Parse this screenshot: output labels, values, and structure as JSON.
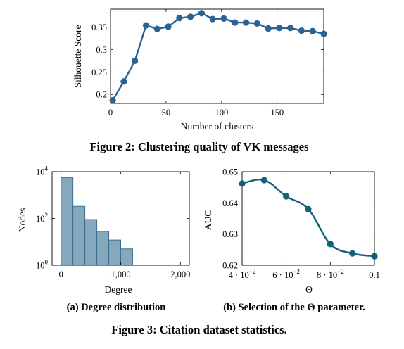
{
  "figure2": {
    "caption": "Figure 2: Clustering quality of VK messages"
  },
  "figure3": {
    "caption": "Figure 3: Citation dataset statistics.",
    "subcaption_a": "(a) Degree distribution",
    "subcaption_b": "(b) Selection of the Θ parameter."
  },
  "colors": {
    "line": "#2a6293",
    "line_b": "#13607a",
    "bar_fill": "#86a8bd",
    "bar_stroke": "#3d6f93"
  },
  "chart_data": [
    {
      "id": "silhouette",
      "type": "line",
      "title": "",
      "xlabel": "Number of clusters",
      "ylabel": "Silhouette Score",
      "xlim": [
        0,
        192
      ],
      "ylim": [
        0.18,
        0.39
      ],
      "xticks": [
        0,
        50,
        100,
        150
      ],
      "xtick_labels": [
        "0",
        "50",
        "100",
        "150"
      ],
      "yticks": [
        0.2,
        0.25,
        0.3,
        0.35
      ],
      "ytick_labels": [
        "0.2",
        "0.25",
        "0.3",
        "0.35"
      ],
      "grid": false,
      "series": [
        {
          "x": [
            2,
            12,
            22,
            32,
            42,
            52,
            62,
            72,
            82,
            92,
            102,
            112,
            122,
            132,
            142,
            152,
            162,
            172,
            182,
            192
          ],
          "values": [
            0.187,
            0.229,
            0.275,
            0.354,
            0.346,
            0.351,
            0.37,
            0.373,
            0.381,
            0.368,
            0.369,
            0.36,
            0.36,
            0.358,
            0.347,
            0.348,
            0.348,
            0.342,
            0.341,
            0.335
          ]
        }
      ]
    },
    {
      "id": "degree",
      "type": "bar",
      "title": "",
      "xlabel": "Degree",
      "ylabel": "Nodes",
      "log_y": true,
      "xlim": [
        -150,
        2150
      ],
      "ylim_log10": [
        0,
        4
      ],
      "xticks": [
        0,
        1000,
        2000
      ],
      "xtick_labels": [
        "0",
        "1,000",
        "2,000"
      ],
      "yticks_exp": [
        0,
        2,
        4
      ],
      "ytick_base": "10",
      "bin_edges": [
        0,
        200,
        400,
        600,
        800,
        1000,
        1200
      ],
      "values": [
        5500,
        330,
        90,
        28,
        12,
        5
      ],
      "grid": false
    },
    {
      "id": "theta",
      "type": "line",
      "title": "",
      "xlabel": "Θ",
      "ylabel": "AUC",
      "xlim": [
        0.04,
        0.1
      ],
      "ylim": [
        0.62,
        0.65
      ],
      "xticks": [
        0.04,
        0.06,
        0.08,
        0.1
      ],
      "xtick_labels": [
        "4 · 10",
        "6 · 10",
        "8 · 10",
        "0.1"
      ],
      "xtick_exps": [
        "−2",
        "−2",
        "−2",
        ""
      ],
      "yticks": [
        0.62,
        0.63,
        0.64,
        0.65
      ],
      "ytick_labels": [
        "0.62",
        "0.63",
        "0.64",
        "0.65"
      ],
      "grid": false,
      "series": [
        {
          "x": [
            0.04,
            0.05,
            0.06,
            0.07,
            0.08,
            0.09,
            0.1
          ],
          "values": [
            0.6462,
            0.6473,
            0.6421,
            0.638,
            0.6268,
            0.6238,
            0.6229
          ]
        }
      ]
    }
  ]
}
